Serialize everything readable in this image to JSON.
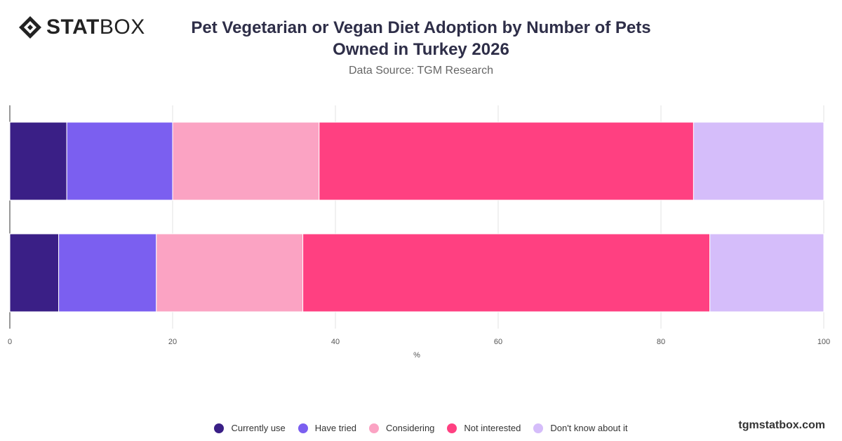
{
  "brand": {
    "logo_bold": "STAT",
    "logo_light": "BOX",
    "footer_url": "tgmstatbox.com"
  },
  "header": {
    "title": "Pet Vegetarian or Vegan Diet Adoption by Number of Pets Owned in Turkey 2026",
    "subtitle": "Data Source: TGM Research"
  },
  "chart_data": {
    "type": "bar",
    "orientation": "horizontal",
    "stacked": true,
    "xlabel": "%",
    "xlim": [
      0,
      100
    ],
    "xticks": [
      0,
      20,
      40,
      60,
      80,
      100
    ],
    "grid": true,
    "legend_position": "bottom",
    "categories": [
      "",
      ""
    ],
    "series": [
      {
        "name": "Currently use",
        "color": "#3a1f86",
        "values": [
          7,
          6
        ]
      },
      {
        "name": "Have tried",
        "color": "#7b5ff0",
        "values": [
          13,
          12
        ]
      },
      {
        "name": "Considering",
        "color": "#fba3c3",
        "values": [
          18,
          18
        ]
      },
      {
        "name": "Not interested",
        "color": "#ff4081",
        "values": [
          46,
          50
        ]
      },
      {
        "name": "Don't know about it",
        "color": "#d5bdfa",
        "values": [
          16,
          14
        ]
      }
    ]
  }
}
